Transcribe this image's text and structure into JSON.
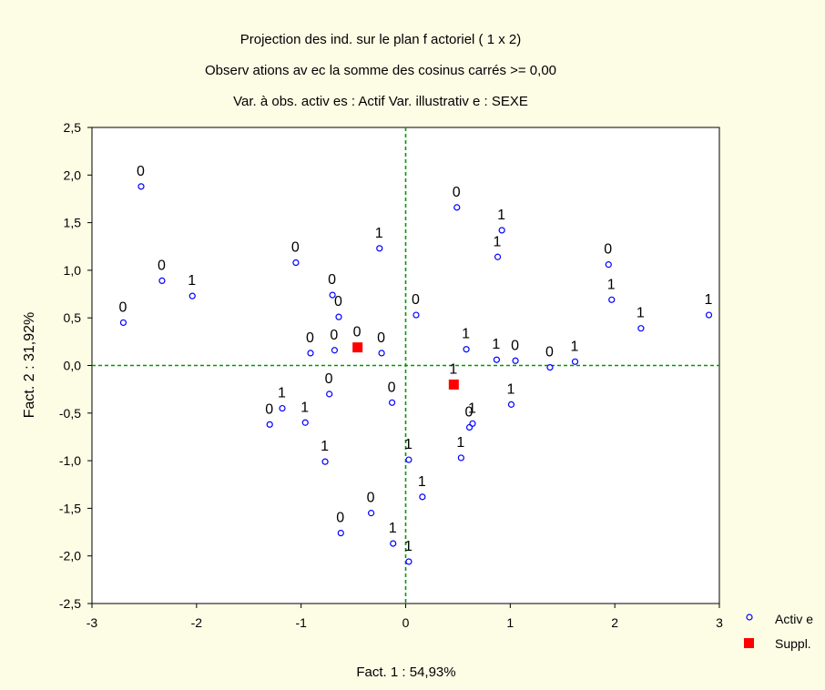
{
  "chart_data": {
    "type": "scatter",
    "title": [
      "Projection des ind. sur le plan f actoriel (  1 x    2)",
      "Observ ations av ec la somme des cosinus carrés >=  0,00",
      "Var. à obs. activ es : Actif    Var. illustrativ e :  SEXE"
    ],
    "xlabel": "Fact. 1 : 54,93%",
    "ylabel": "Fact. 2 : 31,92%",
    "xlim": [
      -3,
      3
    ],
    "ylim": [
      -2.5,
      2.5
    ],
    "xticks": [
      -3,
      -2,
      -1,
      0,
      1,
      2,
      3
    ],
    "yticks": [
      2.5,
      2.0,
      1.5,
      1.0,
      0.5,
      0.0,
      -0.5,
      -1.0,
      -1.5,
      -2.0,
      -2.5
    ],
    "xtick_labels": [
      "-3",
      "-2",
      "-1",
      "0",
      "1",
      "2",
      "3"
    ],
    "ytick_labels": [
      "2,5",
      "2,0",
      "1,5",
      "1,0",
      "0,5",
      "0,0",
      "-0,5",
      "-1,0",
      "-1,5",
      "-2,0",
      "-2,5"
    ],
    "grid": false,
    "reference_lines": {
      "x": 0,
      "y": 0,
      "color": "#009900",
      "style": "dashed"
    },
    "legend_position": "bottom-right",
    "series": [
      {
        "name": "Activ e",
        "marker": "open-circle",
        "color": "#0000ff",
        "points": [
          {
            "x": -2.53,
            "y": 1.88,
            "label": "0"
          },
          {
            "x": -2.33,
            "y": 0.89,
            "label": "0"
          },
          {
            "x": -2.04,
            "y": 0.73,
            "label": "1"
          },
          {
            "x": -2.7,
            "y": 0.45,
            "label": "0"
          },
          {
            "x": -1.05,
            "y": 1.08,
            "label": "0"
          },
          {
            "x": -0.25,
            "y": 1.23,
            "label": "1"
          },
          {
            "x": -0.7,
            "y": 0.74,
            "label": "0"
          },
          {
            "x": -0.64,
            "y": 0.51,
            "label": "0"
          },
          {
            "x": -0.91,
            "y": 0.13,
            "label": "0"
          },
          {
            "x": -0.68,
            "y": 0.16,
            "label": "0"
          },
          {
            "x": -0.23,
            "y": 0.13,
            "label": "0"
          },
          {
            "x": 0.1,
            "y": 0.53,
            "label": "0"
          },
          {
            "x": 0.49,
            "y": 1.66,
            "label": "0"
          },
          {
            "x": 0.92,
            "y": 1.42,
            "label": "1"
          },
          {
            "x": 0.88,
            "y": 1.14,
            "label": "1"
          },
          {
            "x": 1.94,
            "y": 1.06,
            "label": "0"
          },
          {
            "x": 1.97,
            "y": 0.69,
            "label": "1"
          },
          {
            "x": 2.25,
            "y": 0.39,
            "label": "1"
          },
          {
            "x": 2.9,
            "y": 0.53,
            "label": "1"
          },
          {
            "x": 0.58,
            "y": 0.17,
            "label": "1"
          },
          {
            "x": 0.87,
            "y": 0.06,
            "label": "1"
          },
          {
            "x": 1.05,
            "y": 0.05,
            "label": "0"
          },
          {
            "x": 1.38,
            "y": -0.02,
            "label": "0"
          },
          {
            "x": 1.62,
            "y": 0.04,
            "label": "1"
          },
          {
            "x": -1.3,
            "y": -0.62,
            "label": "0"
          },
          {
            "x": -1.18,
            "y": -0.45,
            "label": "1"
          },
          {
            "x": -0.96,
            "y": -0.6,
            "label": "1"
          },
          {
            "x": -0.73,
            "y": -0.3,
            "label": "0"
          },
          {
            "x": -0.13,
            "y": -0.39,
            "label": "0"
          },
          {
            "x": -0.77,
            "y": -1.01,
            "label": "1"
          },
          {
            "x": 1.01,
            "y": -0.41,
            "label": "1"
          },
          {
            "x": 0.64,
            "y": -0.61,
            "label": "1"
          },
          {
            "x": 0.61,
            "y": -0.65,
            "label": "0"
          },
          {
            "x": 0.53,
            "y": -0.97,
            "label": "1"
          },
          {
            "x": 0.03,
            "y": -0.99,
            "label": "1"
          },
          {
            "x": 0.16,
            "y": -1.38,
            "label": "1"
          },
          {
            "x": -0.33,
            "y": -1.55,
            "label": "0"
          },
          {
            "x": -0.62,
            "y": -1.76,
            "label": "0"
          },
          {
            "x": -0.12,
            "y": -1.87,
            "label": "1"
          },
          {
            "x": 0.03,
            "y": -2.06,
            "label": "1"
          }
        ]
      },
      {
        "name": "Suppl.",
        "marker": "filled-square",
        "color": "#ff0000",
        "points": [
          {
            "x": -0.46,
            "y": 0.19,
            "label": "0"
          },
          {
            "x": 0.46,
            "y": -0.2,
            "label": "1"
          }
        ]
      }
    ]
  }
}
